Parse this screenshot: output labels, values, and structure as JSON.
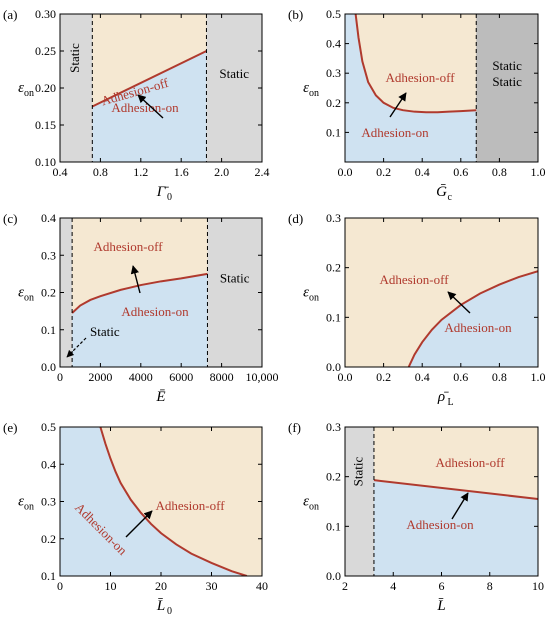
{
  "colors": {
    "adhesion_off_fill": "#f5e8d2",
    "adhesion_on_fill": "#cfe2f1",
    "static_fill": "#d9d9d9",
    "static_dark_fill": "#bcbcbc",
    "boundary_line": "#b03a2e",
    "label_text": "#b03a2e",
    "axis": "#000000"
  },
  "chart_data": [
    {
      "panel": "(a)",
      "type": "area",
      "xlabel": "Γ̄",
      "xlabel_sub": "0",
      "ylabel": "ε",
      "ylabel_sub": "on",
      "xlim": [
        0.4,
        2.4
      ],
      "ylim": [
        0.1,
        0.3
      ],
      "xticks": [
        "0.4",
        "0.8",
        "1.2",
        "1.6",
        "2.0",
        "2.4"
      ],
      "xtick_values": [
        0.4,
        0.8,
        1.2,
        1.6,
        2.0,
        2.4
      ],
      "yticks": [
        "0.10",
        "0.15",
        "0.20",
        "0.25",
        "0.30"
      ],
      "ytick_values": [
        0.1,
        0.15,
        0.2,
        0.25,
        0.3
      ],
      "static_regions": [
        {
          "x0": 0.4,
          "x1": 0.72,
          "shade": "light",
          "label": "Static",
          "vertical": true
        },
        {
          "x0": 1.85,
          "x1": 2.4,
          "shade": "light",
          "label": "Static",
          "vertical": false
        }
      ],
      "boundary": {
        "x": [
          0.72,
          1.85
        ],
        "y": [
          0.175,
          0.25
        ]
      },
      "labels": {
        "off": "Adhesion-off",
        "on": "Adhesion-on"
      }
    },
    {
      "panel": "(b)",
      "type": "area",
      "xlabel": "Ḡ",
      "xlabel_sub": "c",
      "ylabel": "ε",
      "ylabel_sub": "on",
      "xlim": [
        0,
        1.0
      ],
      "ylim": [
        0,
        0.5
      ],
      "xticks": [
        "0.0",
        "0.2",
        "0.4",
        "0.6",
        "0.8",
        "1.0"
      ],
      "xtick_values": [
        0,
        0.2,
        0.4,
        0.6,
        0.8,
        1.0
      ],
      "yticks": [
        "0.1",
        "0.2",
        "0.3",
        "0.4",
        "0.5"
      ],
      "ytick_values": [
        0.1,
        0.2,
        0.3,
        0.4,
        0.5
      ],
      "static_regions": [
        {
          "x0": 0.68,
          "x1": 1.0,
          "shade": "dark",
          "label": "Static",
          "label2": "Static",
          "vertical": false
        }
      ],
      "boundary": {
        "x": [
          0.055,
          0.07,
          0.09,
          0.12,
          0.16,
          0.2,
          0.25,
          0.3,
          0.36,
          0.42,
          0.48,
          0.54,
          0.6,
          0.68
        ],
        "y": [
          0.5,
          0.42,
          0.34,
          0.27,
          0.225,
          0.2,
          0.183,
          0.175,
          0.17,
          0.168,
          0.168,
          0.17,
          0.172,
          0.175
        ]
      },
      "labels": {
        "off": "Adhesion-off",
        "on": "Adhesion-on"
      }
    },
    {
      "panel": "(c)",
      "type": "area",
      "xlabel": "Ē",
      "xlabel_sub": "",
      "ylabel": "ε",
      "ylabel_sub": "on",
      "xlim": [
        0,
        10000
      ],
      "ylim": [
        0,
        0.4
      ],
      "xticks": [
        "0",
        "2000",
        "4000",
        "6000",
        "8000",
        "10,000"
      ],
      "xtick_values": [
        0,
        2000,
        4000,
        6000,
        8000,
        10000
      ],
      "yticks": [
        "0.0",
        "0.1",
        "0.2",
        "0.3",
        "0.4"
      ],
      "ytick_values": [
        0,
        0.1,
        0.2,
        0.3,
        0.4
      ],
      "static_regions": [
        {
          "x0": 0,
          "x1": 600,
          "shade": "light",
          "label": "",
          "vertical": false
        },
        {
          "x0": 7300,
          "x1": 10000,
          "shade": "light",
          "label": "Static",
          "vertical": false
        }
      ],
      "boundary": {
        "x": [
          600,
          1000,
          1500,
          2000,
          3000,
          4000,
          5000,
          6000,
          7300
        ],
        "y": [
          0.145,
          0.165,
          0.18,
          0.19,
          0.207,
          0.22,
          0.23,
          0.238,
          0.25
        ]
      },
      "labels": {
        "off": "Adhesion-off",
        "on": "Adhesion-on",
        "static_note": "Static"
      }
    },
    {
      "panel": "(d)",
      "type": "area",
      "xlabel": "ρ̄",
      "xlabel_sub": "L",
      "ylabel": "ε",
      "ylabel_sub": "on",
      "xlim": [
        0,
        1.0
      ],
      "ylim": [
        0,
        0.3
      ],
      "xticks": [
        "0.0",
        "0.2",
        "0.4",
        "0.6",
        "0.8",
        "1.0"
      ],
      "xtick_values": [
        0,
        0.2,
        0.4,
        0.6,
        0.8,
        1.0
      ],
      "yticks": [
        "0.0",
        "0.1",
        "0.2",
        "0.3"
      ],
      "ytick_values": [
        0,
        0.1,
        0.2,
        0.3
      ],
      "static_regions": [],
      "boundary": {
        "x": [
          0.33,
          0.36,
          0.4,
          0.45,
          0.5,
          0.6,
          0.7,
          0.8,
          0.9,
          1.0
        ],
        "y": [
          0.0,
          0.025,
          0.05,
          0.075,
          0.095,
          0.125,
          0.148,
          0.166,
          0.181,
          0.193
        ]
      },
      "labels": {
        "off": "Adhesion-off",
        "on": "Adhesion-on"
      }
    },
    {
      "panel": "(e)",
      "type": "area",
      "xlabel": "L̄",
      "xlabel_sub": "0",
      "ylabel": "ε",
      "ylabel_sub": "on",
      "xlim": [
        0,
        40
      ],
      "ylim": [
        0.1,
        0.5
      ],
      "xticks": [
        "0",
        "10",
        "20",
        "30",
        "40"
      ],
      "xtick_values": [
        0,
        10,
        20,
        30,
        40
      ],
      "yticks": [
        "0.1",
        "0.2",
        "0.3",
        "0.4",
        "0.5"
      ],
      "ytick_values": [
        0.1,
        0.2,
        0.3,
        0.4,
        0.5
      ],
      "static_regions": [],
      "boundary": {
        "x": [
          8,
          9,
          10,
          11,
          12,
          14,
          16,
          18,
          20,
          23,
          26,
          30,
          34,
          37
        ],
        "y": [
          0.5,
          0.455,
          0.415,
          0.38,
          0.35,
          0.305,
          0.27,
          0.24,
          0.215,
          0.185,
          0.16,
          0.135,
          0.113,
          0.1
        ]
      },
      "labels": {
        "off": "Adhesion-off",
        "on": "Adhesion-on"
      }
    },
    {
      "panel": "(f)",
      "type": "area",
      "xlabel": "L̄",
      "xlabel_sub": "",
      "ylabel": "ε",
      "ylabel_sub": "on",
      "xlim": [
        2,
        10
      ],
      "ylim": [
        0,
        0.3
      ],
      "xticks": [
        "2",
        "4",
        "6",
        "8",
        "10"
      ],
      "xtick_values": [
        2,
        4,
        6,
        8,
        10
      ],
      "yticks": [
        "0.0",
        "0.1",
        "0.2",
        "0.3"
      ],
      "ytick_values": [
        0,
        0.1,
        0.2,
        0.3
      ],
      "static_regions": [
        {
          "x0": 2,
          "x1": 3.2,
          "shade": "light",
          "label": "Static",
          "vertical": true
        }
      ],
      "boundary": {
        "x": [
          3.2,
          10
        ],
        "y": [
          0.193,
          0.155
        ]
      },
      "labels": {
        "off": "Adhesion-off",
        "on": "Adhesion-on"
      }
    }
  ]
}
